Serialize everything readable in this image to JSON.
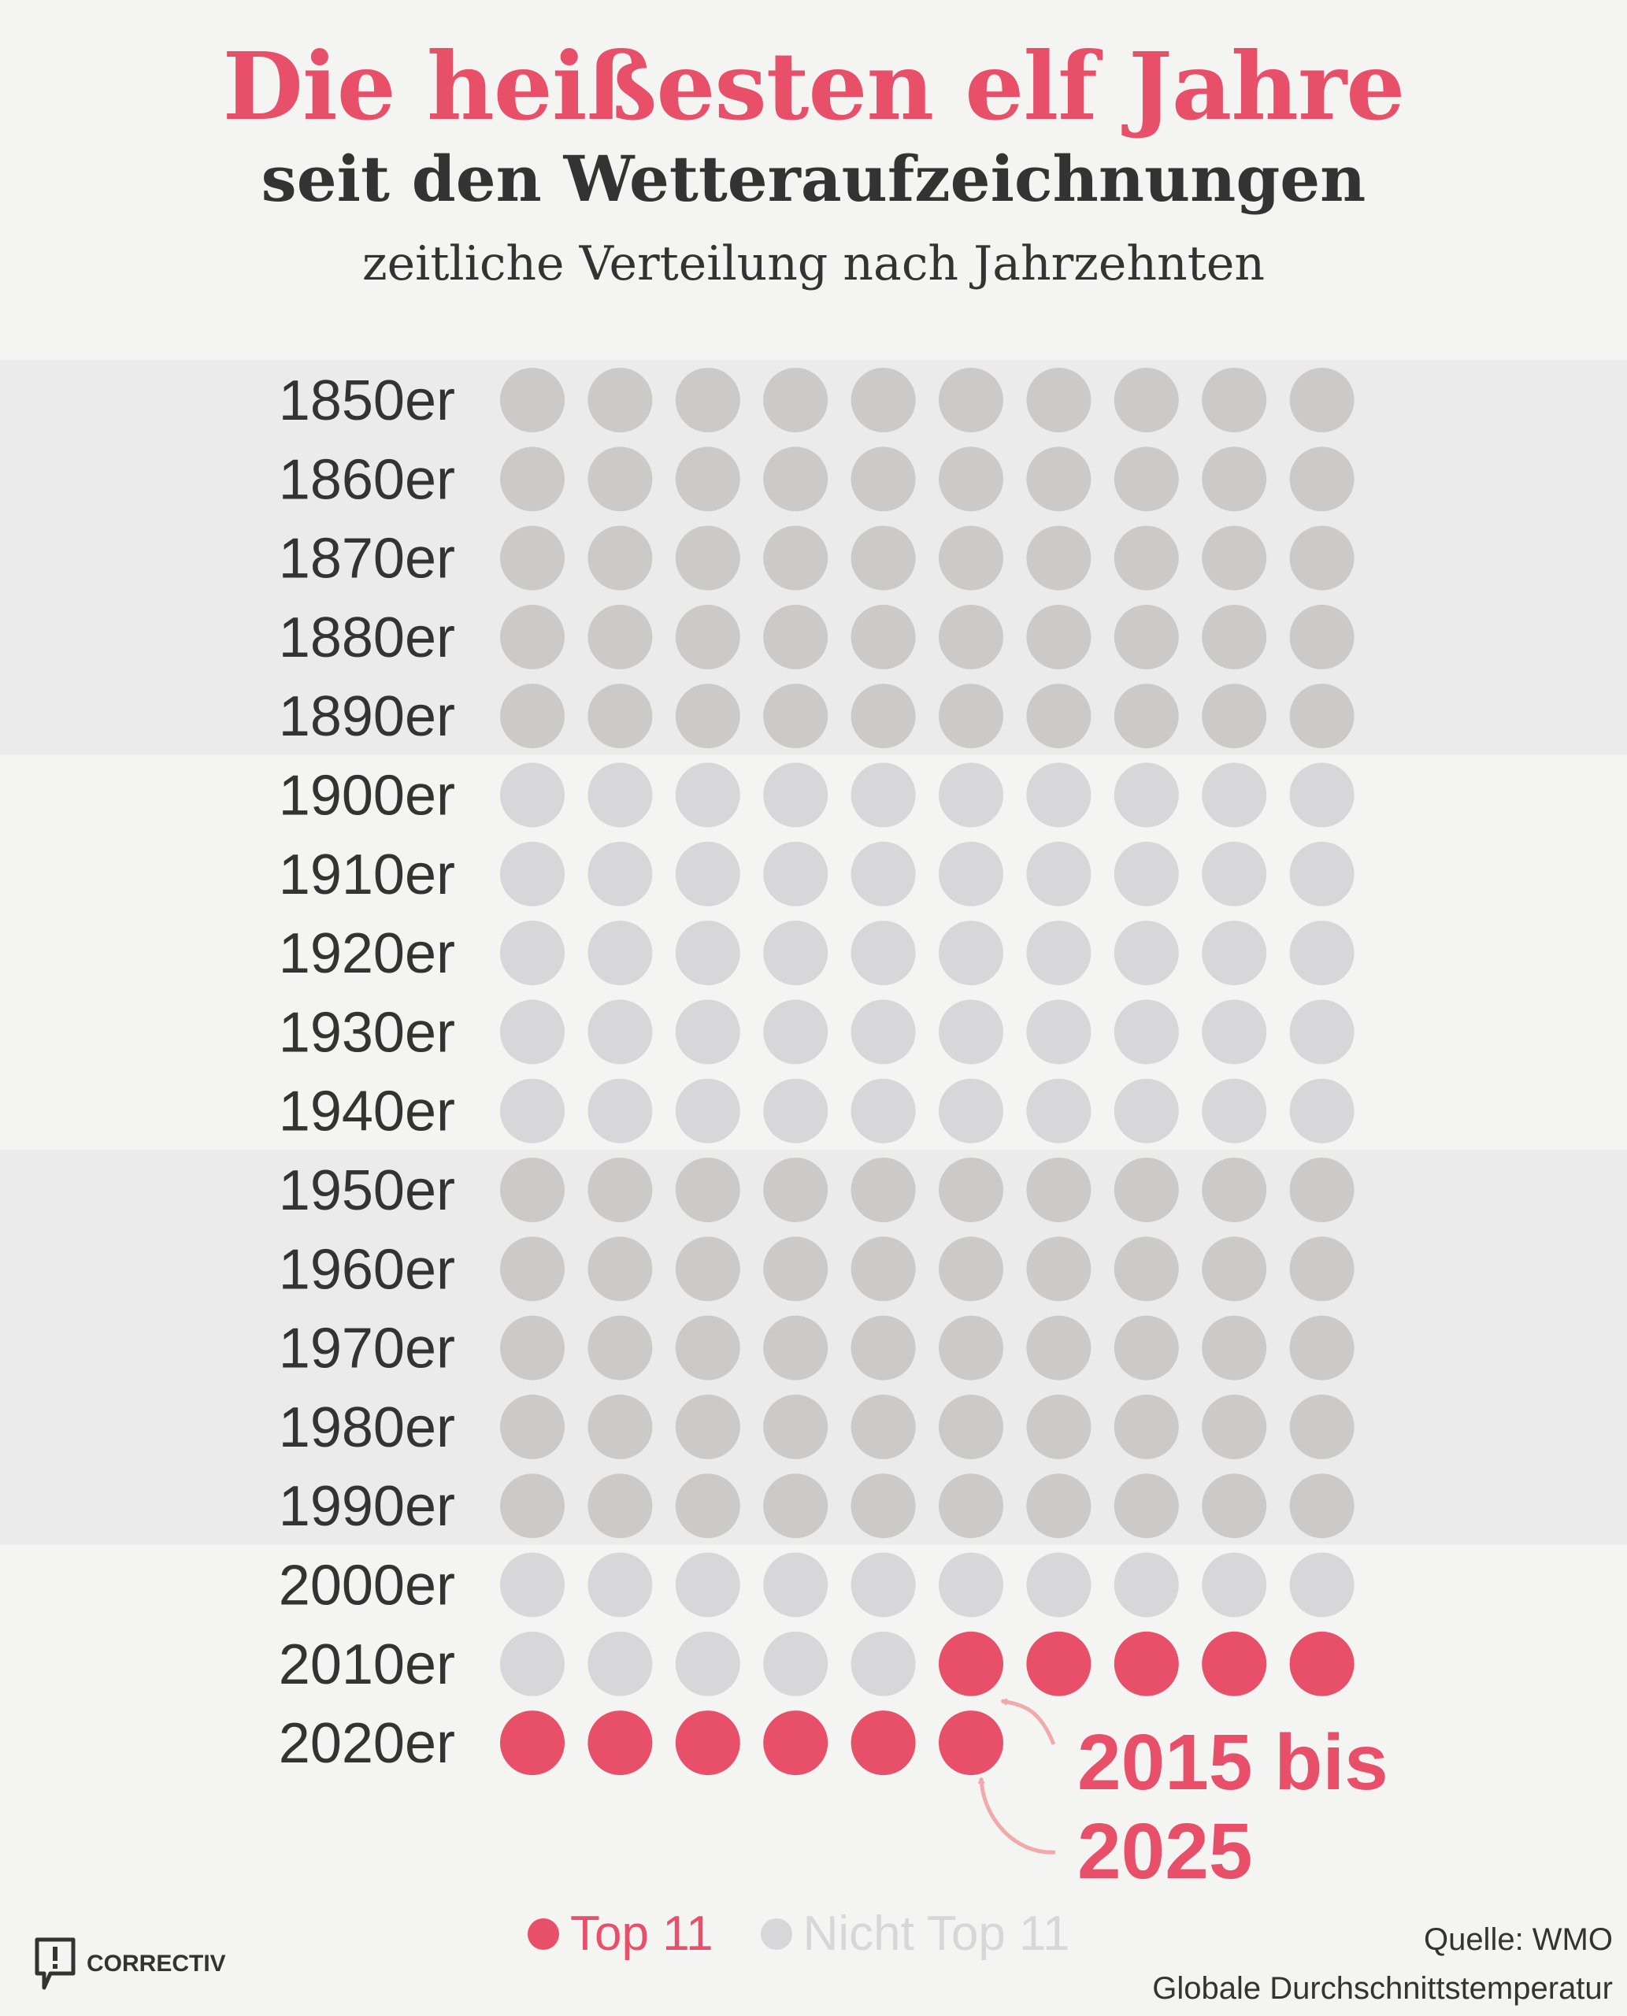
{
  "header": {
    "title": "Die heißesten elf Jahre",
    "subtitle": "seit den Wetteraufzeichnungen",
    "caption": "zeitliche Verteilung nach Jahrzehnten"
  },
  "colors": {
    "accent": "#e8506a",
    "dot_dark": "#cbcac8",
    "dot_light": "#d7d6d8",
    "band_dark": "#ebebeb",
    "band_light": "#f4f4f2",
    "annotation_arrow": "#f0aaaa",
    "text": "#333333"
  },
  "chart_data": {
    "type": "table",
    "title": "Die heißesten elf Jahre seit den Wetteraufzeichnungen",
    "subtitle": "zeitliche Verteilung nach Jahrzehnten",
    "decades": [
      "1850er",
      "1860er",
      "1870er",
      "1880er",
      "1890er",
      "1900er",
      "1910er",
      "1920er",
      "1930er",
      "1940er",
      "1950er",
      "1960er",
      "1970er",
      "1980er",
      "1990er",
      "2000er",
      "2010er",
      "2020er"
    ],
    "years_per_decade": 10,
    "top11_years": [
      2015,
      2016,
      2017,
      2018,
      2019,
      2020,
      2021,
      2022,
      2023,
      2024,
      2025
    ],
    "annotation": {
      "line1": "2015 bis",
      "line2": "2025"
    },
    "legend": {
      "top": "Top 11",
      "not_top": "Nicht Top 11"
    }
  },
  "source": {
    "line1": "Quelle: WMO",
    "line2": "Globale Durchschnittstemperatur"
  },
  "logo": {
    "text": "CORRECTIV"
  }
}
